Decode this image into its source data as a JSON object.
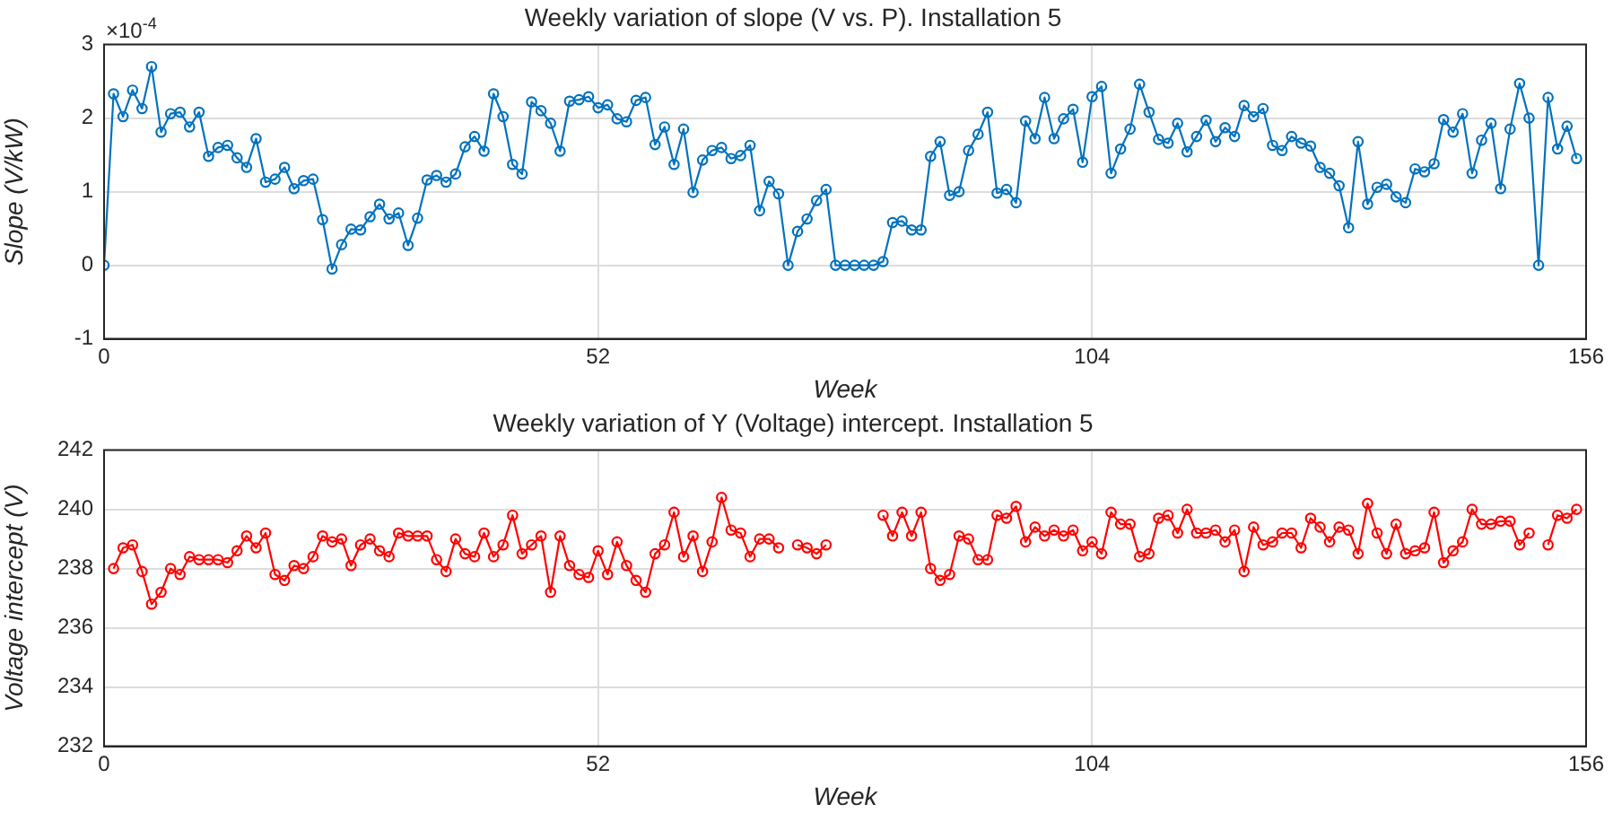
{
  "chart_data": [
    {
      "type": "line",
      "title": "Weekly variation of slope (V vs. P). Installation 5",
      "xlabel": "Week",
      "ylabel": "Slope (V/kW)",
      "annotations": [
        "×10$^{-4}$"
      ],
      "marker": "circle",
      "line_style": "solid",
      "grid": true,
      "xlim": [
        0,
        156
      ],
      "xticks": [
        0,
        52,
        104,
        156
      ],
      "ylim": [
        -1,
        3
      ],
      "yticks": [
        -1,
        0,
        1,
        2,
        3
      ],
      "x": [
        0,
        1,
        2,
        3,
        4,
        5,
        6,
        7,
        8,
        9,
        10,
        11,
        12,
        13,
        14,
        15,
        16,
        17,
        18,
        19,
        20,
        21,
        22,
        23,
        24,
        25,
        26,
        27,
        28,
        29,
        30,
        31,
        32,
        33,
        34,
        35,
        36,
        37,
        38,
        39,
        40,
        41,
        42,
        43,
        44,
        45,
        46,
        47,
        48,
        49,
        50,
        51,
        52,
        53,
        54,
        55,
        56,
        57,
        58,
        59,
        60,
        61,
        62,
        63,
        64,
        65,
        66,
        67,
        68,
        69,
        70,
        71,
        72,
        73,
        74,
        75,
        76,
        77,
        78,
        79,
        80,
        81,
        82,
        83,
        84,
        85,
        86,
        87,
        88,
        89,
        90,
        91,
        92,
        93,
        94,
        95,
        96,
        97,
        98,
        99,
        100,
        101,
        102,
        103,
        104,
        105,
        106,
        107,
        108,
        109,
        110,
        111,
        112,
        113,
        114,
        115,
        116,
        117,
        118,
        119,
        120,
        121,
        122,
        123,
        124,
        125,
        126,
        127,
        128,
        129,
        130,
        131,
        132,
        133,
        134,
        135,
        136,
        137,
        138,
        139,
        140,
        141,
        142,
        143,
        144,
        145,
        146,
        147,
        148,
        149,
        150,
        151,
        152,
        153,
        154,
        155
      ],
      "series": [
        {
          "color": "#0072bd",
          "values": [
            0,
            2.33,
            2.02,
            2.38,
            2.13,
            2.7,
            1.81,
            2.06,
            2.08,
            1.88,
            2.08,
            1.48,
            1.6,
            1.63,
            1.46,
            1.33,
            1.72,
            1.13,
            1.17,
            1.33,
            1.04,
            1.15,
            1.17,
            0.62,
            -0.05,
            0.28,
            0.49,
            0.48,
            0.66,
            0.83,
            0.63,
            0.71,
            0.27,
            0.64,
            1.16,
            1.22,
            1.13,
            1.24,
            1.61,
            1.75,
            1.55,
            2.33,
            2.02,
            1.37,
            1.24,
            2.22,
            2.1,
            1.93,
            1.55,
            2.23,
            2.25,
            2.29,
            2.14,
            2.18,
            1.99,
            1.95,
            2.24,
            2.28,
            1.64,
            1.88,
            1.37,
            1.85,
            0.99,
            1.43,
            1.56,
            1.6,
            1.45,
            1.49,
            1.63,
            0.74,
            1.14,
            0.97,
            0,
            0.46,
            0.63,
            0.88,
            1.03,
            0,
            0,
            0,
            0,
            0,
            0.05,
            0.58,
            0.6,
            0.48,
            0.48,
            1.48,
            1.68,
            0.95,
            1.0,
            1.56,
            1.78,
            2.08,
            0.98,
            1.03,
            0.85,
            1.96,
            1.72,
            2.28,
            1.72,
            1.99,
            2.12,
            1.4,
            2.29,
            2.43,
            1.25,
            1.58,
            1.85,
            2.46,
            2.08,
            1.71,
            1.66,
            1.93,
            1.54,
            1.75,
            1.97,
            1.68,
            1.87,
            1.75,
            2.17,
            2.02,
            2.13,
            1.63,
            1.56,
            1.75,
            1.66,
            1.62,
            1.33,
            1.25,
            1.08,
            0.51,
            1.68,
            0.83,
            1.06,
            1.1,
            0.93,
            0.85,
            1.31,
            1.27,
            1.38,
            1.98,
            1.81,
            2.06,
            1.25,
            1.7,
            1.93,
            1.04,
            1.85,
            2.47,
            2.0,
            0,
            2.28,
            1.58,
            1.89,
            1.45
          ]
        }
      ]
    },
    {
      "type": "line",
      "title": "Weekly variation of Y (Voltage) intercept. Installation 5",
      "xlabel": "Week",
      "ylabel": "Voltage intercept (V)",
      "marker": "circle",
      "line_style": "solid",
      "grid": true,
      "xlim": [
        0,
        156
      ],
      "xticks": [
        0,
        52,
        104,
        156
      ],
      "ylim": [
        232,
        242
      ],
      "yticks": [
        232,
        234,
        236,
        238,
        240,
        242
      ],
      "x": [
        1,
        2,
        3,
        4,
        5,
        6,
        7,
        8,
        9,
        10,
        11,
        12,
        13,
        14,
        15,
        16,
        17,
        18,
        19,
        20,
        21,
        22,
        23,
        24,
        25,
        26,
        27,
        28,
        29,
        30,
        31,
        32,
        33,
        34,
        35,
        36,
        37,
        38,
        39,
        40,
        41,
        42,
        43,
        44,
        45,
        46,
        47,
        48,
        49,
        50,
        51,
        52,
        53,
        54,
        55,
        56,
        57,
        58,
        59,
        60,
        61,
        62,
        63,
        64,
        65,
        66,
        67,
        68,
        69,
        70,
        71,
        72,
        73,
        74,
        75,
        76,
        77,
        78,
        79,
        80,
        81,
        82,
        83,
        84,
        85,
        86,
        87,
        88,
        89,
        90,
        91,
        92,
        93,
        94,
        95,
        96,
        97,
        98,
        99,
        100,
        101,
        102,
        103,
        104,
        105,
        106,
        107,
        108,
        109,
        110,
        111,
        112,
        113,
        114,
        115,
        116,
        117,
        118,
        119,
        120,
        121,
        122,
        123,
        124,
        125,
        126,
        127,
        128,
        129,
        130,
        131,
        132,
        133,
        134,
        135,
        136,
        137,
        138,
        139,
        140,
        141,
        142,
        143,
        144,
        145,
        146,
        147,
        148,
        149,
        150,
        151,
        152,
        153,
        154,
        155
      ],
      "series": [
        {
          "color": "#ff0000",
          "values": [
            238.0,
            238.7,
            238.8,
            237.9,
            236.8,
            237.2,
            238.0,
            237.8,
            238.4,
            238.3,
            238.3,
            238.3,
            238.2,
            238.6,
            239.1,
            238.7,
            239.2,
            237.8,
            237.6,
            238.1,
            238.0,
            238.4,
            239.1,
            238.9,
            239.0,
            238.1,
            238.8,
            239.0,
            238.6,
            238.4,
            239.2,
            239.1,
            239.1,
            239.1,
            238.3,
            237.9,
            239.0,
            238.5,
            238.4,
            239.2,
            238.4,
            238.8,
            239.8,
            238.5,
            238.8,
            239.1,
            237.2,
            239.1,
            238.1,
            237.8,
            237.7,
            238.6,
            237.8,
            238.9,
            238.1,
            237.6,
            237.2,
            238.5,
            238.8,
            239.9,
            238.4,
            239.1,
            237.9,
            238.9,
            240.4,
            239.3,
            239.2,
            238.4,
            239.0,
            239.0,
            238.7,
            null,
            238.8,
            238.7,
            238.5,
            238.8,
            null,
            null,
            null,
            null,
            null,
            239.8,
            239.1,
            239.9,
            239.1,
            239.9,
            238.0,
            237.6,
            237.8,
            239.1,
            239.0,
            238.3,
            238.3,
            239.8,
            239.7,
            240.1,
            238.9,
            239.4,
            239.1,
            239.3,
            239.1,
            239.3,
            238.6,
            238.9,
            238.5,
            239.9,
            239.5,
            239.5,
            238.4,
            238.5,
            239.7,
            239.8,
            239.2,
            240.0,
            239.2,
            239.2,
            239.3,
            238.9,
            239.3,
            237.9,
            239.4,
            238.8,
            238.9,
            239.2,
            239.2,
            238.7,
            239.7,
            239.4,
            238.9,
            239.4,
            239.3,
            238.5,
            240.2,
            239.2,
            238.5,
            239.5,
            238.5,
            238.6,
            238.7,
            239.9,
            238.2,
            238.6,
            238.9,
            240.0,
            239.5,
            239.5,
            239.6,
            239.6,
            238.8,
            239.2,
            null,
            238.8,
            239.8,
            239.7,
            240.0
          ]
        }
      ]
    }
  ]
}
